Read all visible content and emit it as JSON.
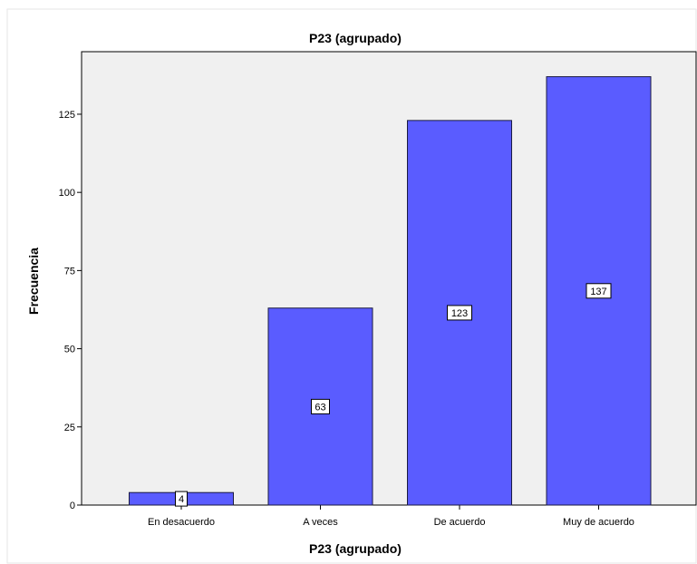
{
  "chart_data": {
    "type": "bar",
    "title": "P23 (agrupado)",
    "xlabel": "P23 (agrupado)",
    "ylabel": "Frecuencia",
    "categories": [
      "En desacuerdo",
      "A veces",
      "De acuerdo",
      "Muy de acuerdo"
    ],
    "values": [
      4,
      63,
      123,
      137
    ],
    "data_labels": [
      "4",
      "63",
      "123",
      "137"
    ],
    "ylim": [
      0,
      145
    ],
    "yticks": [
      0,
      25,
      50,
      75,
      100,
      125
    ],
    "ytick_labels": [
      "0",
      "25",
      "50",
      "75",
      "100",
      "125"
    ],
    "grid": false,
    "legend": "none",
    "colors": {
      "bar_fill": "#5a5cff",
      "bar_stroke": "#1a1a40",
      "plot_background": "#f0f0f0",
      "frame": "#000000"
    }
  }
}
